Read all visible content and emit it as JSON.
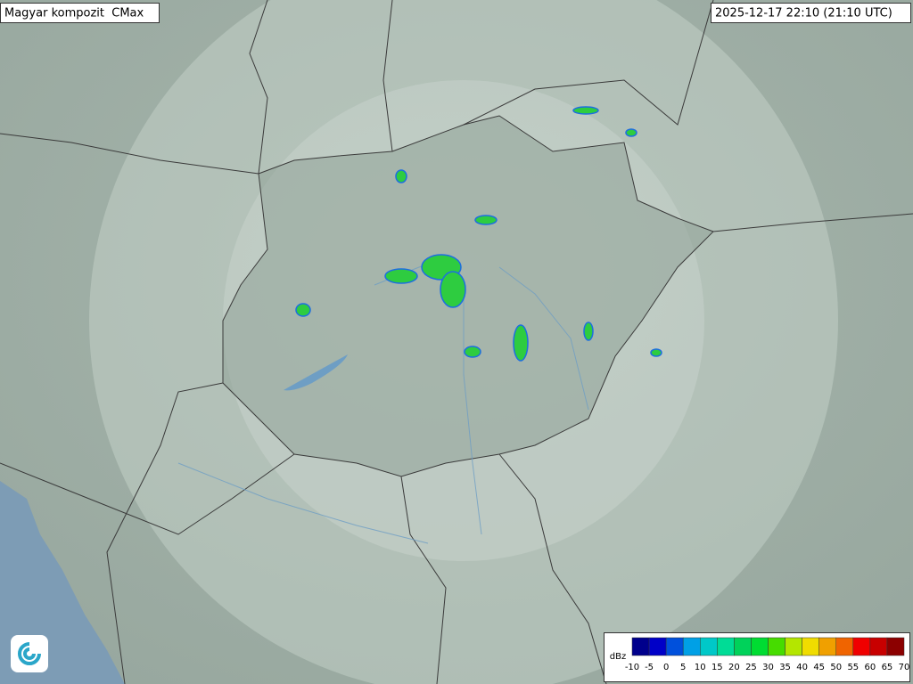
{
  "header": {
    "title": "Magyar kompozit  CMax",
    "timestamp": "2025-12-17 22:10 (21:10 UTC)"
  },
  "legend": {
    "unit": "dBz",
    "labels": [
      -10,
      -5,
      0,
      5,
      10,
      15,
      20,
      25,
      30,
      35,
      40,
      45,
      50,
      55,
      60,
      65,
      70
    ],
    "colors": [
      "#00008c",
      "#0000c8",
      "#0050dc",
      "#00a0e6",
      "#00c8c8",
      "#00dc96",
      "#00d25a",
      "#00dc32",
      "#46dc00",
      "#b4e600",
      "#f0dc00",
      "#f0a000",
      "#f06400",
      "#f00000",
      "#c80000",
      "#8c0000"
    ]
  }
}
